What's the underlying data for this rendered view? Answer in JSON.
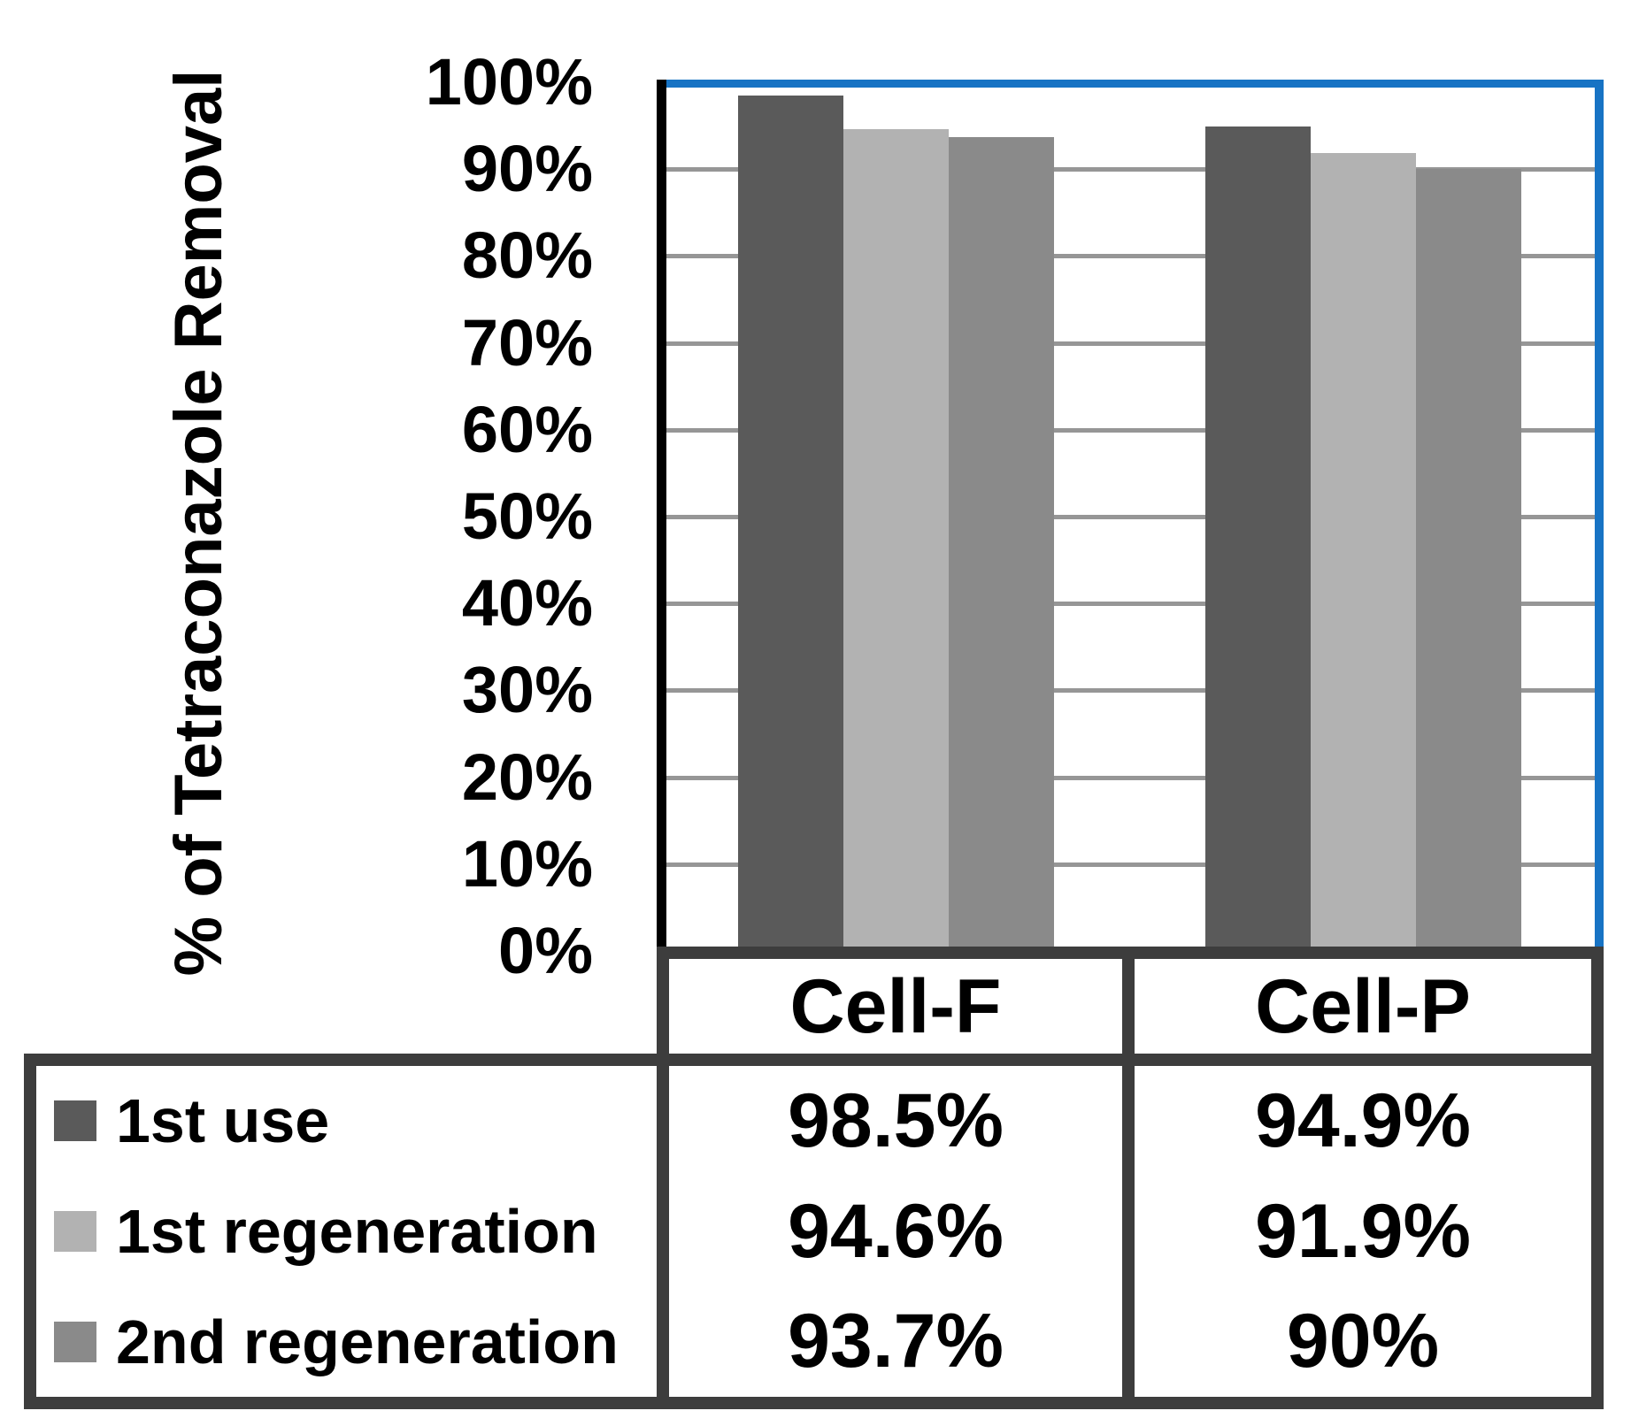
{
  "chart_data": {
    "type": "bar",
    "title": "",
    "ylabel": "% of Tetraconazole Removal",
    "xlabel": "",
    "categories": [
      "Cell-F",
      "Cell-P"
    ],
    "series": [
      {
        "name": "1st use",
        "color": "#5a5a5a",
        "values": [
          98.5,
          94.9
        ],
        "labels": [
          "98.5%",
          "94.9%"
        ]
      },
      {
        "name": "1st regeneration",
        "color": "#b2b2b2",
        "values": [
          94.6,
          91.9
        ],
        "labels": [
          "94.6%",
          "91.9%"
        ]
      },
      {
        "name": "2nd regeneration",
        "color": "#8a8a8a",
        "values": [
          93.7,
          90.0
        ],
        "labels": [
          "93.7%",
          "90%"
        ]
      }
    ],
    "ylim": [
      0,
      100
    ],
    "ytick_step": 10,
    "ytick_labels": [
      "0%",
      "10%",
      "20%",
      "30%",
      "40%",
      "50%",
      "60%",
      "70%",
      "80%",
      "90%",
      "100%"
    ],
    "grid": true,
    "legend_position": "bottom-left-table"
  },
  "colors": {
    "plot_border": "#1773c4",
    "axis": "#000000",
    "gridline": "#969696",
    "table_border": "#3d3d3d",
    "text": "#000000",
    "background": "#ffffff"
  }
}
